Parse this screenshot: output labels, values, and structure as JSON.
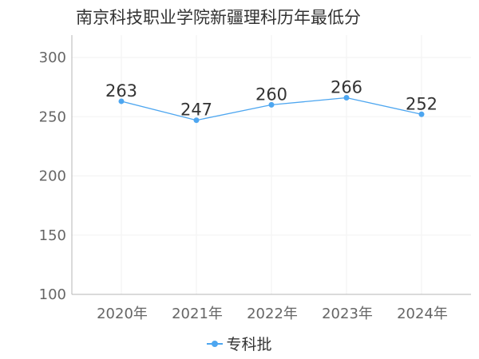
{
  "colors": {
    "series": "#4da6f0",
    "axis": "#b5b5b5",
    "grid": "#f2f2f2"
  },
  "chart_data": {
    "type": "line",
    "title": "南京科技职业学院新疆理科历年最低分",
    "categories": [
      "2020年",
      "2021年",
      "2022年",
      "2023年",
      "2024年"
    ],
    "series": [
      {
        "name": "专科批",
        "values": [
          263,
          247,
          260,
          266,
          252
        ]
      }
    ],
    "ylim": [
      100,
      300
    ],
    "yticks": [
      100,
      150,
      200,
      250,
      300
    ],
    "xlabel": "",
    "ylabel": "",
    "grid": true,
    "legend": "bottom-center"
  }
}
